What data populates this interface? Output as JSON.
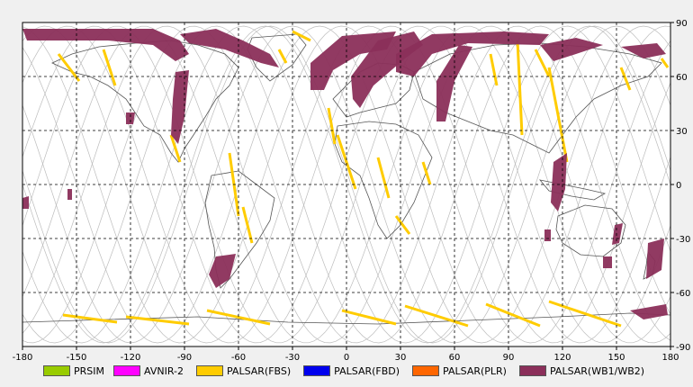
{
  "map": {
    "lon_ticks": [
      "-180",
      "-150",
      "-120",
      "-90",
      "-60",
      "-30",
      "0",
      "30",
      "60",
      "90",
      "120",
      "150",
      "180"
    ],
    "lat_ticks": [
      "90",
      "60",
      "30",
      "0",
      "-30",
      "-60",
      "-90"
    ],
    "colors": {
      "background": "#ffffff",
      "coastline": "#555555",
      "orbit_track": "#bdbdbd",
      "grid": "#000000",
      "fbs": "#ffcc00",
      "wb": "#8b2f5a"
    }
  },
  "legend": {
    "items": [
      {
        "label": "PRSIM",
        "color": "#99cc00"
      },
      {
        "label": "AVNIR-2",
        "color": "#ff00ff"
      },
      {
        "label": "PALSAR(FBS)",
        "color": "#ffcc00"
      },
      {
        "label": "PALSAR(FBD)",
        "color": "#0000ee"
      },
      {
        "label": "PALSAR(PLR)",
        "color": "#ff6600"
      },
      {
        "label": "PALSAR(WB1/WB2)",
        "color": "#8b2f5a"
      }
    ]
  }
}
